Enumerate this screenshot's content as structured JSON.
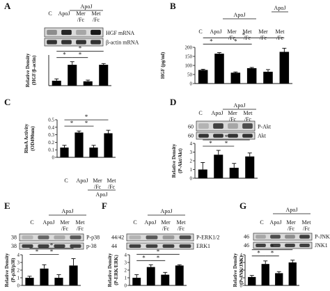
{
  "figure": {
    "panels": [
      {
        "id": "A",
        "letter": "A",
        "group_label": "ApoJ",
        "column_labels": [
          "C",
          "ApoJ",
          "Mer /Fc",
          "Met /Fc"
        ],
        "blot_labels": [
          "HGF mRNA",
          "β-actin mRNA"
        ],
        "ylabel_lines": [
          "Relative Density",
          "(HGF/β-actin)"
        ]
      },
      {
        "id": "B",
        "letter": "B",
        "group_label": "ApoJ",
        "column_labels": [
          "C",
          "ApoJ",
          "Mer /Fc",
          "Met /Fc",
          "Mer /Fc",
          "Met /Fc"
        ],
        "ylabel_lines": [
          "HGF (pg/ml)"
        ]
      },
      {
        "id": "C",
        "letter": "C",
        "group_label": "ApoJ",
        "column_labels": [
          "C",
          "ApoJ",
          "Mer /Fc",
          "Met /Fc"
        ],
        "ylabel_lines": [
          "RhoA Activity",
          "(OD490nm)"
        ]
      },
      {
        "id": "D",
        "letter": "D",
        "group_label": "ApoJ",
        "column_labels": [
          "C",
          "ApoJ",
          "Mer /Fc",
          "Met /Fc"
        ],
        "blot_labels": [
          "P-Akt",
          "Akt"
        ],
        "markers": [
          "60",
          "60"
        ],
        "ylabel_lines": [
          "Relative Density",
          "(P-Akt/Akt)"
        ]
      },
      {
        "id": "E",
        "letter": "E",
        "group_label": "ApoJ",
        "column_labels": [
          "C",
          "ApoJ",
          "Mer /Fc",
          "Met /Fc"
        ],
        "blot_labels": [
          "P-p38",
          "p-38"
        ],
        "markers": [
          "38",
          "38"
        ],
        "ylabel_lines": [
          "Relative Density",
          "(P-p38/p38)"
        ]
      },
      {
        "id": "F",
        "letter": "F",
        "group_label": "ApoJ",
        "column_labels": [
          "C",
          "ApoJ",
          "Mer /Fc",
          "Met /Fc"
        ],
        "blot_labels": [
          "P-ERK1/2",
          "ERK1"
        ],
        "markers": [
          "44/42",
          "44"
        ],
        "ylabel_lines": [
          "Relative Density",
          "(P-ERK/ERK)"
        ]
      },
      {
        "id": "G",
        "letter": "G",
        "group_label": "ApoJ",
        "column_labels": [
          "C",
          "ApoJ",
          "Mer /Fc",
          "Met /Fc"
        ],
        "blot_labels": [
          "P-JNK",
          "JNK1"
        ],
        "markers": [
          "46",
          "46"
        ],
        "ylabel_lines": [
          "Relative Density",
          "(P-JNK/JNK)"
        ]
      }
    ],
    "significance_marker": "*"
  },
  "chart_data": [
    {
      "panel": "A",
      "type": "bar",
      "categories": [
        "C",
        "ApoJ",
        "Mer/Fc",
        "Met/Fc"
      ],
      "values": [
        0.8,
        3.4,
        0.7,
        3.4
      ],
      "errors": [
        0.3,
        0.5,
        0.2,
        0.2
      ],
      "ylim": [
        0,
        5
      ],
      "yticks": [],
      "grid": false,
      "ylabel": "Relative Density (HGF/β-actin)"
    },
    {
      "panel": "B",
      "type": "bar",
      "categories": [
        "C",
        "ApoJ",
        "Mer/Fc",
        "Met/Fc",
        "Mer/Fc",
        "Met/Fc"
      ],
      "values": [
        75,
        165,
        60,
        85,
        65,
        175
      ],
      "errors": [
        4,
        6,
        4,
        4,
        12,
        20
      ],
      "ylim": [
        0,
        200
      ],
      "yticks": [
        0,
        50,
        100,
        150,
        200
      ],
      "grid": false,
      "ylabel": "HGF (pg/ml)"
    },
    {
      "panel": "C",
      "type": "bar",
      "categories": [
        "C",
        "ApoJ",
        "Mer/Fc",
        "Met/Fc"
      ],
      "values": [
        0.13,
        0.33,
        0.13,
        0.32
      ],
      "errors": [
        0.03,
        0.02,
        0.03,
        0.04
      ],
      "ylim": [
        0,
        0.5
      ],
      "yticks": [
        0,
        0.1,
        0.2,
        0.3,
        0.4,
        0.5
      ],
      "grid": false,
      "ylabel": "RhoA Activity (OD490nm)"
    },
    {
      "panel": "D",
      "type": "bar",
      "categories": [
        "C",
        "ApoJ",
        "Mer/Fc",
        "Met/Fc"
      ],
      "values": [
        1.0,
        2.7,
        1.2,
        2.5
      ],
      "errors": [
        0.8,
        0.5,
        0.5,
        0.4
      ],
      "ylim": [
        0,
        4
      ],
      "yticks": [
        0,
        1,
        2,
        3,
        4
      ],
      "grid": false,
      "ylabel": "Relative Density (P-Akt/Akt)"
    },
    {
      "panel": "E",
      "type": "bar",
      "categories": [
        "C",
        "ApoJ",
        "Mer/Fc",
        "Met/Fc"
      ],
      "values": [
        1.0,
        2.2,
        1.0,
        2.6
      ],
      "errors": [
        0.2,
        0.5,
        0.4,
        0.9
      ],
      "ylim": [
        0,
        4
      ],
      "yticks": [
        0,
        1,
        2,
        3,
        4
      ],
      "grid": false,
      "ylabel": "Relative Density (P-p38/p38)"
    },
    {
      "panel": "F",
      "type": "bar",
      "categories": [
        "C",
        "ApoJ",
        "Mer/Fc",
        "Met/Fc"
      ],
      "values": [
        1.0,
        2.4,
        1.4,
        2.6
      ],
      "errors": [
        0.4,
        0.3,
        0.3,
        0.1
      ],
      "ylim": [
        0,
        4
      ],
      "yticks": [
        0,
        1,
        2,
        3,
        4
      ],
      "grid": false,
      "ylabel": "Relative Density (P-ERK/ERK)"
    },
    {
      "panel": "G",
      "type": "bar",
      "categories": [
        "C",
        "ApoJ",
        "Mer/Fc",
        "Met/Fc"
      ],
      "values": [
        1.1,
        2.8,
        1.6,
        3.0
      ],
      "errors": [
        0.2,
        0.4,
        0.2,
        0.3
      ],
      "ylim": [
        0,
        4
      ],
      "yticks": [
        0,
        1,
        2,
        3,
        4
      ],
      "grid": false,
      "ylabel": "Relative Density (P-JNK/JNK)"
    }
  ]
}
